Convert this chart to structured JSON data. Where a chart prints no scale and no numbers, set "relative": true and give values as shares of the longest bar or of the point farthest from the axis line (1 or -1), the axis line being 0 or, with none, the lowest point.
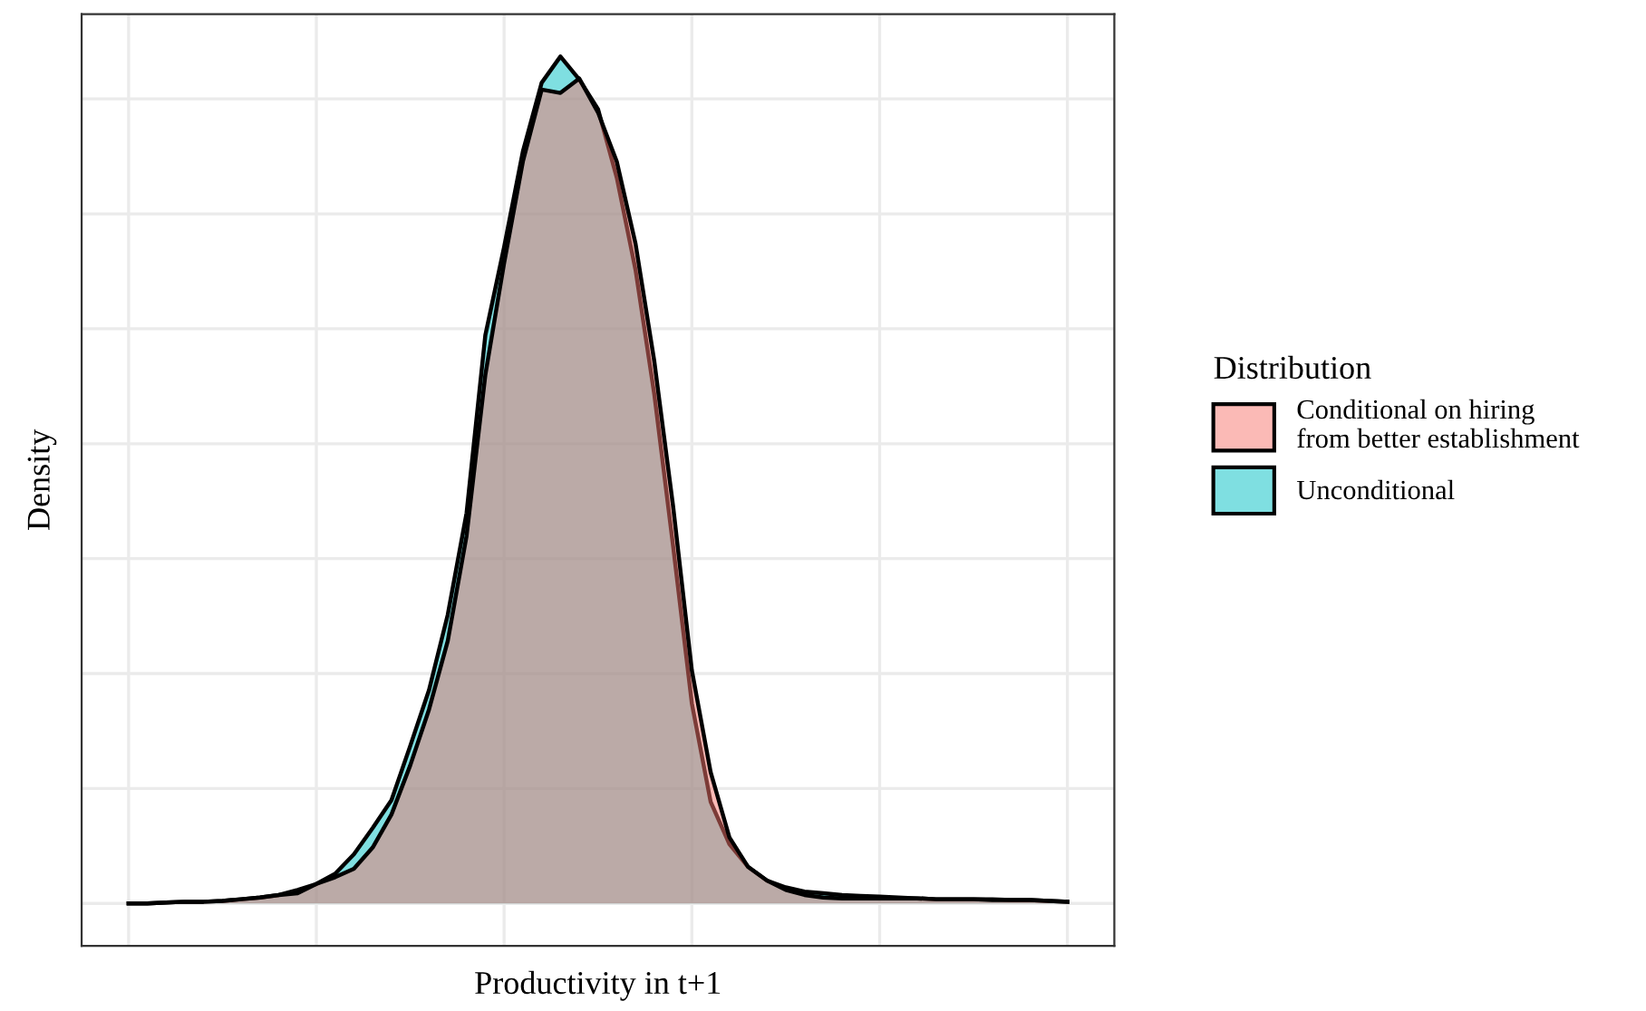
{
  "chart_data": {
    "type": "area",
    "relative": true,
    "xlabel": "Productivity in t+1",
    "ylabel": "Density",
    "legend_title": "Distribution",
    "legend": "right",
    "grid": true,
    "tick_labels": false,
    "categories": [
      null,
      null,
      null,
      null,
      null,
      null,
      null,
      null,
      null,
      null,
      null,
      null,
      null,
      null,
      null,
      null,
      null,
      null,
      null,
      null,
      null,
      null,
      null,
      null,
      null,
      null,
      null,
      null,
      null,
      null,
      null,
      null,
      null,
      null,
      null,
      null,
      null,
      null,
      null,
      null,
      null,
      null,
      null,
      null,
      null,
      null,
      null,
      null,
      null,
      null,
      null
    ],
    "series": [
      {
        "name": "Conditional on hiring\nfrom better establishment",
        "color": "#f8766d",
        "values": [
          0,
          0,
          0.001,
          0.002,
          0.002,
          0.003,
          0.005,
          0.007,
          0.01,
          0.012,
          0.023,
          0.031,
          0.041,
          0.066,
          0.105,
          0.163,
          0.229,
          0.31,
          0.434,
          0.624,
          0.756,
          0.876,
          0.961,
          0.957,
          0.974,
          0.934,
          0.876,
          0.779,
          0.64,
          0.469,
          0.275,
          0.155,
          0.078,
          0.043,
          0.027,
          0.016,
          0.01,
          0.007,
          0.006,
          0.006,
          0.006,
          0.006,
          0.006,
          0.005,
          0.005,
          0.005,
          0.004,
          0.004,
          0.004,
          0.003,
          0.002
        ]
      },
      {
        "name": "Unconditional",
        "color": "#00bfc4",
        "values": [
          0,
          0,
          0.001,
          0.002,
          0.002,
          0.003,
          0.005,
          0.007,
          0.01,
          0.016,
          0.023,
          0.035,
          0.058,
          0.089,
          0.122,
          0.186,
          0.252,
          0.341,
          0.461,
          0.671,
          0.775,
          0.888,
          0.969,
          1,
          0.973,
          0.938,
          0.857,
          0.748,
          0.601,
          0.422,
          0.236,
          0.12,
          0.07,
          0.043,
          0.027,
          0.019,
          0.014,
          0.012,
          0.01,
          0.009,
          0.008,
          0.007,
          0.006,
          0.005,
          0.005,
          0.005,
          0.005,
          0.004,
          0.004,
          0.003,
          0.002
        ]
      }
    ]
  }
}
